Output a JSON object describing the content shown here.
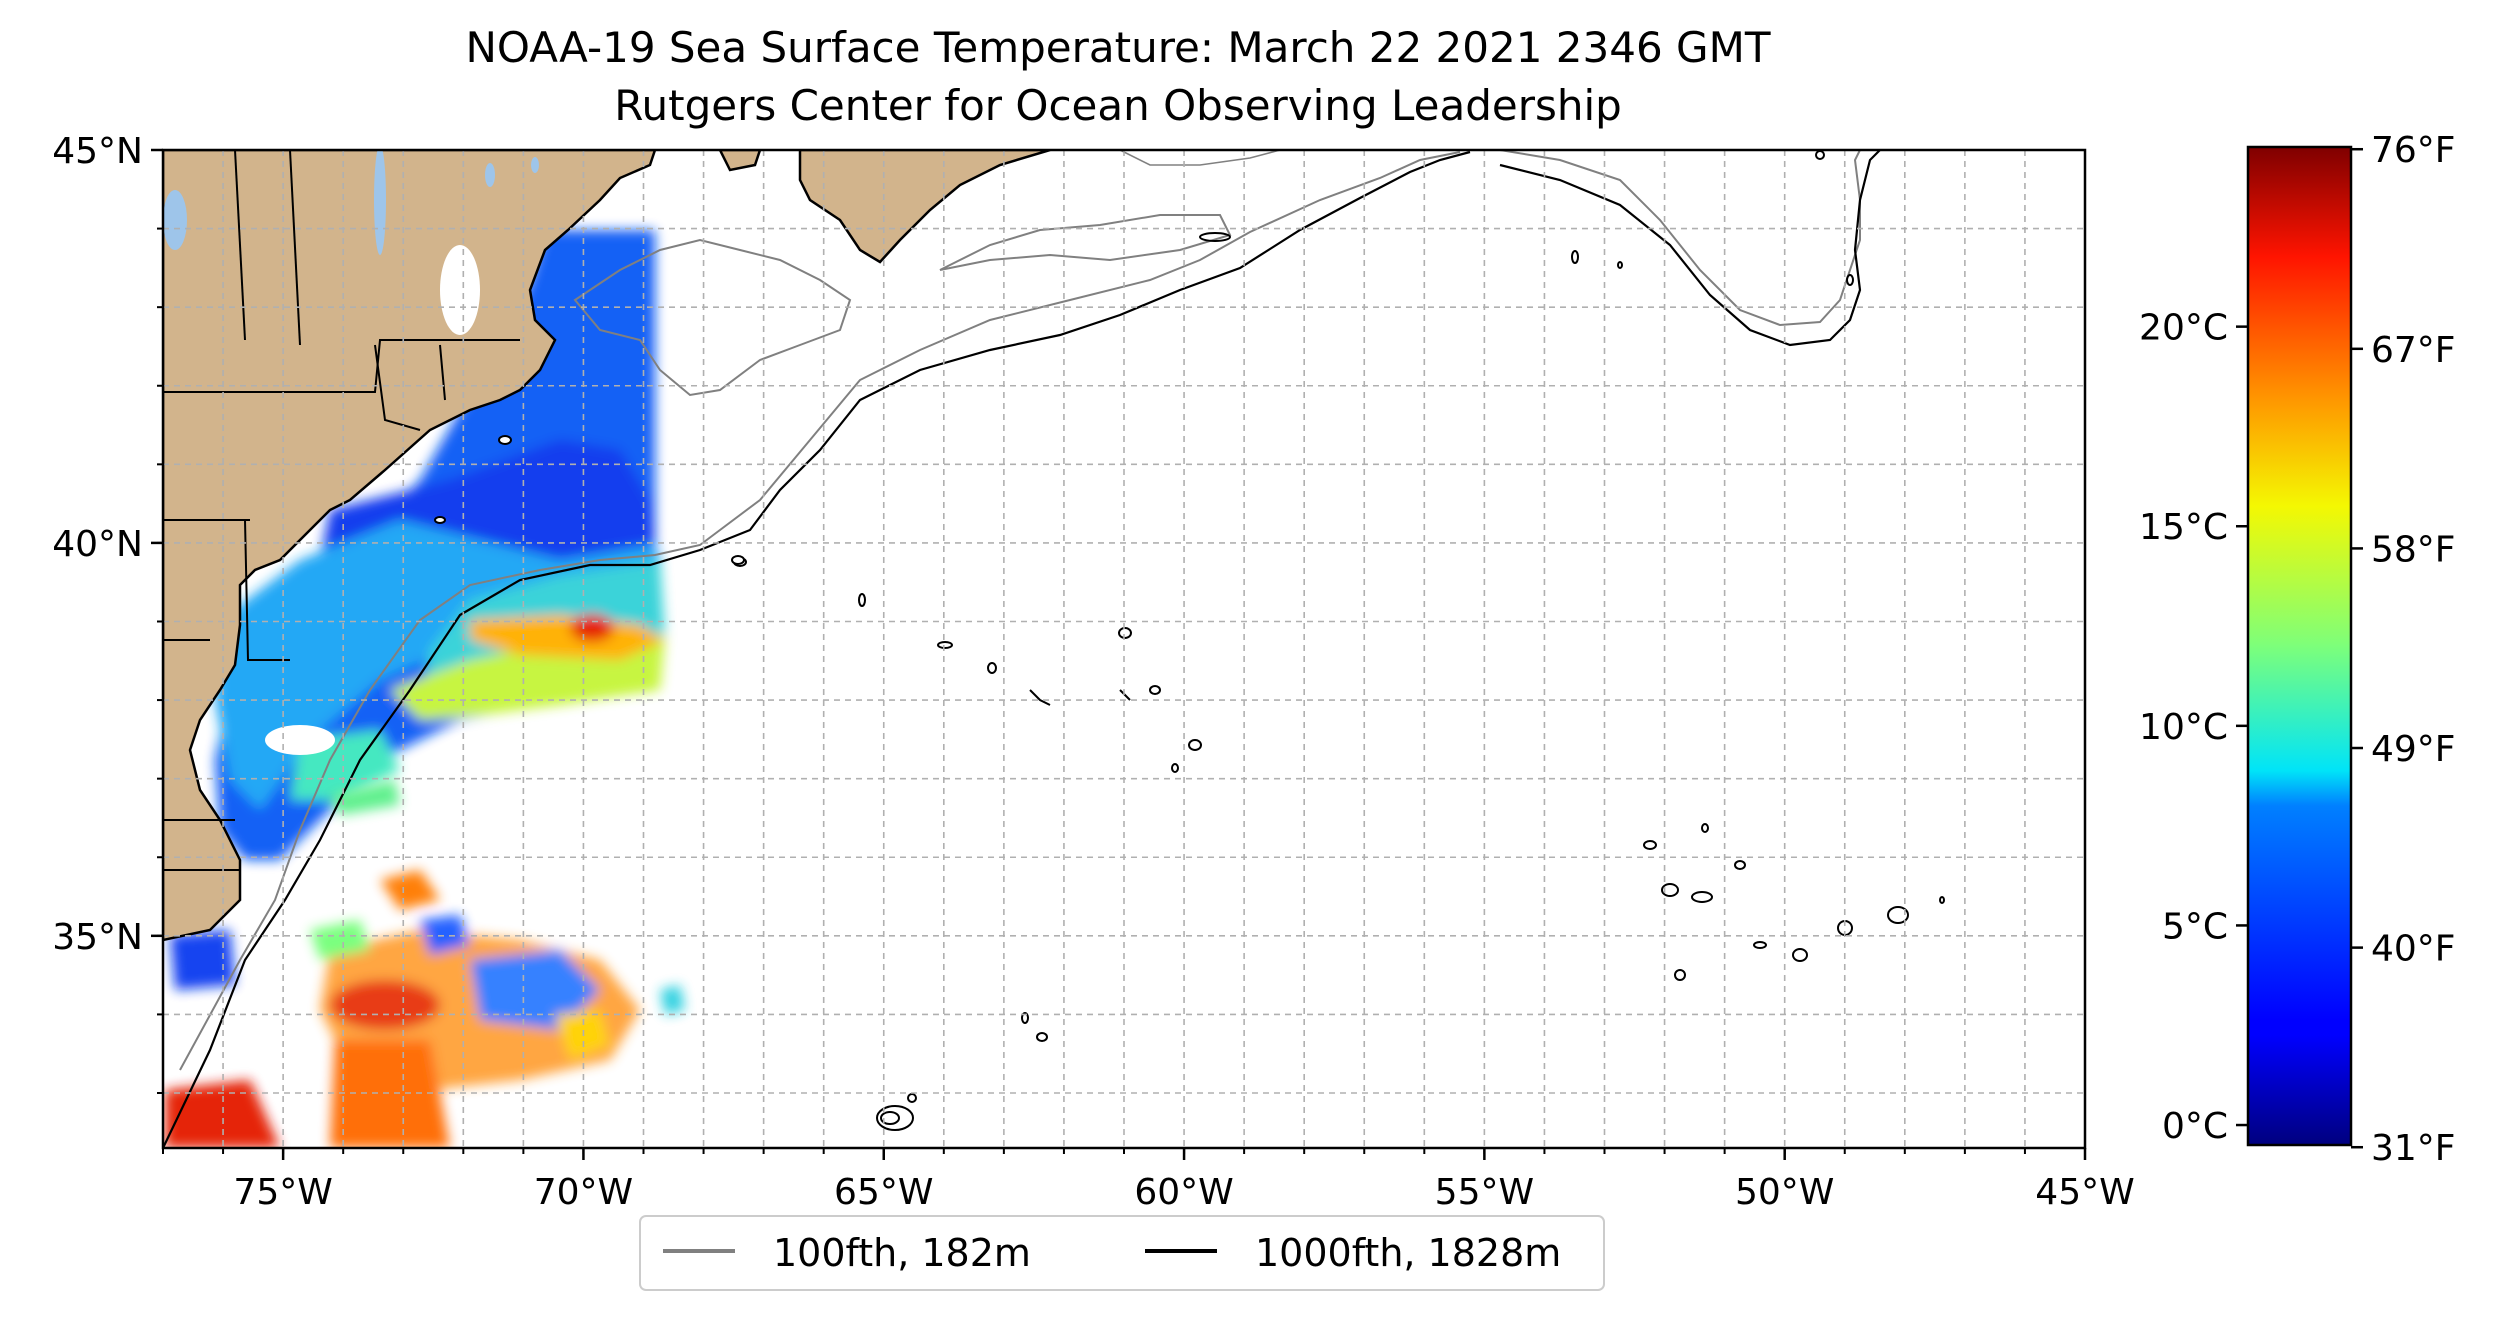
{
  "title": {
    "line1": "NOAA-19 Sea Surface Temperature: March 22 2021 2346 GMT",
    "line2": "Rutgers Center for Ocean Observing Leadership"
  },
  "map": {
    "lon_range": [
      -77.0,
      -45.0
    ],
    "lat_range": [
      32.3,
      45.0
    ],
    "lat_ticks": [
      {
        "value": 45,
        "label": "45°N"
      },
      {
        "value": 40,
        "label": "40°N"
      },
      {
        "value": 35,
        "label": "35°N"
      }
    ],
    "lon_ticks": [
      {
        "value": -75,
        "label": "75°W"
      },
      {
        "value": -70,
        "label": "70°W"
      },
      {
        "value": -65,
        "label": "65°W"
      },
      {
        "value": -60,
        "label": "60°W"
      },
      {
        "value": -55,
        "label": "55°W"
      },
      {
        "value": -50,
        "label": "50°W"
      },
      {
        "value": -45,
        "label": "45°W"
      }
    ],
    "grid": true,
    "grid_spacing_deg": 1,
    "land_color": "#d2b48c",
    "lake_color": "#9ec5ea"
  },
  "legend": {
    "placement": "bottom-center",
    "items": [
      {
        "label": "100fth, 182m",
        "color": "#808080"
      },
      {
        "label": "1000fth, 1828m",
        "color": "#000000"
      }
    ]
  },
  "colorbar": {
    "colormap": "jet",
    "range_c": [
      -0.5,
      24.5
    ],
    "celsius_ticks": [
      {
        "value": 0,
        "label": "0°C"
      },
      {
        "value": 5,
        "label": "5°C"
      },
      {
        "value": 10,
        "label": "10°C"
      },
      {
        "value": 15,
        "label": "15°C"
      },
      {
        "value": 20,
        "label": "20°C"
      }
    ],
    "fahrenheit_ticks": [
      {
        "value": 31,
        "label": "31°F"
      },
      {
        "value": 40,
        "label": "40°F"
      },
      {
        "value": 49,
        "label": "49°F"
      },
      {
        "value": 58,
        "label": "58°F"
      },
      {
        "value": 67,
        "label": "67°F"
      },
      {
        "value": 76,
        "label": "76°F"
      }
    ]
  }
}
